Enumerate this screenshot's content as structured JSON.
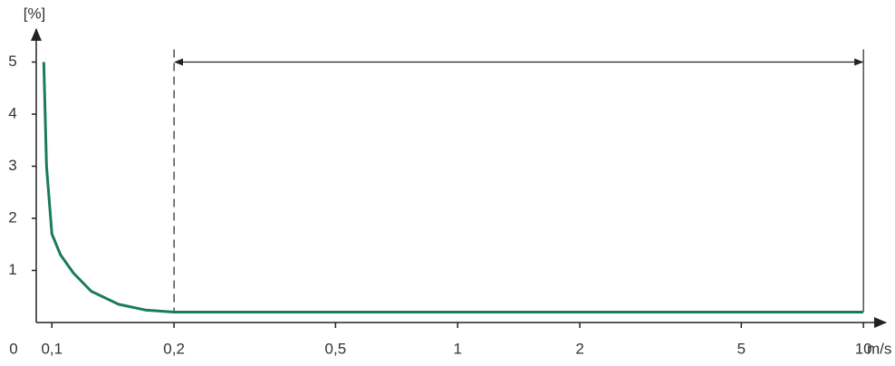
{
  "chart_data": {
    "type": "line",
    "x_scale": "log",
    "y_label": "[%]",
    "x_label": "m/s",
    "origin_label": "0",
    "x": [
      0.0955,
      0.097,
      0.1,
      0.105,
      0.113,
      0.125,
      0.146,
      0.17,
      0.2,
      0.5,
      1,
      2,
      5,
      10
    ],
    "series": [
      {
        "color": "#1a7a5c",
        "values": [
          5,
          3,
          1.7,
          1.3,
          0.95,
          0.6,
          0.35,
          0.24,
          0.2,
          0.2,
          0.2,
          0.2,
          0.2,
          0.2
        ]
      }
    ],
    "xlim": [
      0.0915,
      11.9
    ],
    "ylim": [
      0,
      5.6
    ],
    "xticks": [
      {
        "value": 0.1,
        "label": "0,1"
      },
      {
        "value": 0.2,
        "label": "0,2"
      },
      {
        "value": 0.5,
        "label": "0,5"
      },
      1,
      2,
      5,
      10
    ],
    "yticks": [
      1,
      2,
      3,
      4,
      5
    ],
    "range_marker": [
      0.2,
      10
    ]
  }
}
